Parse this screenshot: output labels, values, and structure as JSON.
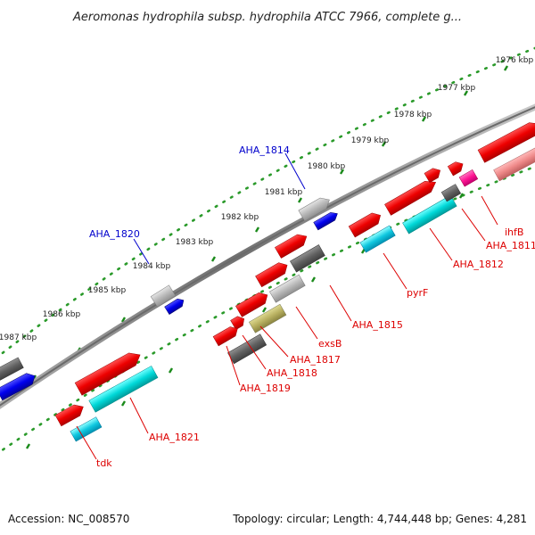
{
  "title": "Aeromonas hydrophila subsp. hydrophila ATCC 7966, complete g...",
  "footer": {
    "accession": "Accession: NC_008570",
    "summary": "Topology: circular; Length: 4,744,448 bp; Genes: 4,281"
  },
  "ticks": [
    {
      "kb": 1976,
      "label": "1976 kbp"
    },
    {
      "kb": 1977,
      "label": "1977 kbp"
    },
    {
      "kb": 1978,
      "label": "1978 kbp"
    },
    {
      "kb": 1979,
      "label": "1979 kbp"
    },
    {
      "kb": 1980,
      "label": "1980 kbp"
    },
    {
      "kb": 1981,
      "label": "1981 kbp"
    },
    {
      "kb": 1982,
      "label": "1982 kbp"
    },
    {
      "kb": 1983,
      "label": "1983 kbp"
    },
    {
      "kb": 1984,
      "label": "1984 kbp"
    },
    {
      "kb": 1985,
      "label": "1985 kbp"
    },
    {
      "kb": 1986,
      "label": "1986 kbp"
    },
    {
      "kb": 1987,
      "label": "1987 kbp"
    }
  ],
  "gene_labels": [
    {
      "text": "AHA_1814",
      "color": "#0000cc"
    },
    {
      "text": "AHA_1820",
      "color": "#0000cc"
    },
    {
      "text": "ihfB",
      "color": "#dd0000"
    },
    {
      "text": "AHA_1811",
      "color": "#dd0000"
    },
    {
      "text": "AHA_1812",
      "color": "#dd0000"
    },
    {
      "text": "pyrF",
      "color": "#dd0000"
    },
    {
      "text": "AHA_1815",
      "color": "#dd0000"
    },
    {
      "text": "exsB",
      "color": "#dd0000"
    },
    {
      "text": "AHA_1817",
      "color": "#dd0000"
    },
    {
      "text": "AHA_1818",
      "color": "#dd0000"
    },
    {
      "text": "AHA_1819",
      "color": "#dd0000"
    },
    {
      "text": "AHA_1821",
      "color": "#dd0000"
    },
    {
      "text": "tdk",
      "color": "#dd0000"
    }
  ],
  "colors": {
    "backbone": "#808080",
    "tick_ring": "#2a9a2a",
    "gene_red": "#ee0000",
    "gene_cyan": "#00cccc",
    "gene_gray": "#606060",
    "gene_lightgray": "#b0b0b0",
    "gene_blue": "#0000ee",
    "gene_pink": "#ff1493",
    "gene_salmon": "#ee8888",
    "gene_olive": "#b8b060"
  }
}
